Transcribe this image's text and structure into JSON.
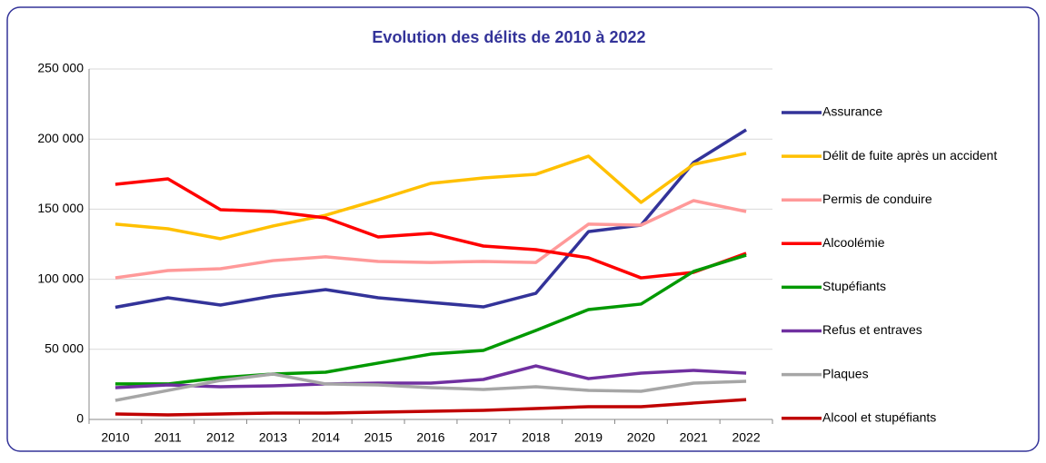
{
  "chart_data": {
    "type": "line",
    "title": "Evolution des délits de 2010 à 2022",
    "categories": [
      "2010",
      "2011",
      "2012",
      "2013",
      "2014",
      "2015",
      "2016",
      "2017",
      "2018",
      "2019",
      "2020",
      "2021",
      "2022"
    ],
    "series": [
      {
        "name": "Assurance",
        "color": "#333399",
        "values": [
          80000,
          86800,
          81600,
          88000,
          92600,
          86800,
          83500,
          80300,
          90000,
          134000,
          138600,
          183300,
          206600
        ]
      },
      {
        "name": "Délit de fuite après un accident",
        "color": "#ffc000",
        "values": [
          139300,
          136000,
          128900,
          138000,
          145700,
          156700,
          168400,
          172300,
          174900,
          187800,
          154800,
          182000,
          189800
        ]
      },
      {
        "name": "Permis de conduire",
        "color": "#ff9999",
        "values": [
          101000,
          106200,
          107500,
          113300,
          116000,
          112700,
          112000,
          112700,
          112000,
          139300,
          138600,
          156100,
          148300
        ]
      },
      {
        "name": "Alcoolémie",
        "color": "#ff0000",
        "values": [
          167700,
          171600,
          149600,
          148300,
          143800,
          130200,
          132800,
          123700,
          121100,
          115300,
          101000,
          104900,
          118500
        ]
      },
      {
        "name": "Stupéfiants",
        "color": "#009900",
        "values": [
          25300,
          25300,
          29800,
          32400,
          33700,
          40200,
          46600,
          49200,
          63500,
          78400,
          82300,
          105600,
          117200
        ]
      },
      {
        "name": "Refus et entraves",
        "color": "#7030a0",
        "values": [
          22700,
          24600,
          23300,
          24000,
          25300,
          25900,
          25900,
          28500,
          38200,
          29100,
          33000,
          35000,
          33000
        ]
      },
      {
        "name": "Plaques",
        "color": "#a6a6a6",
        "values": [
          13600,
          20700,
          27800,
          32400,
          25300,
          24600,
          22700,
          21400,
          23300,
          20700,
          20100,
          25900,
          27200
        ]
      },
      {
        "name": "Alcool et stupéfiants",
        "color": "#c00000",
        "values": [
          3900,
          3200,
          3900,
          4500,
          4500,
          5200,
          5800,
          6500,
          7800,
          9100,
          9100,
          11700,
          14200
        ]
      }
    ],
    "ylim": [
      0,
      250000
    ],
    "yticks": [
      0,
      {
        "value": 50000,
        "label": "50 000"
      },
      {
        "value": 100000,
        "label": "100 000"
      },
      {
        "value": 150000,
        "label": "150 000"
      },
      {
        "value": 200000,
        "label": "200 000"
      },
      {
        "value": 250000,
        "label": "250 000"
      }
    ],
    "grid": true,
    "legend": "right"
  }
}
